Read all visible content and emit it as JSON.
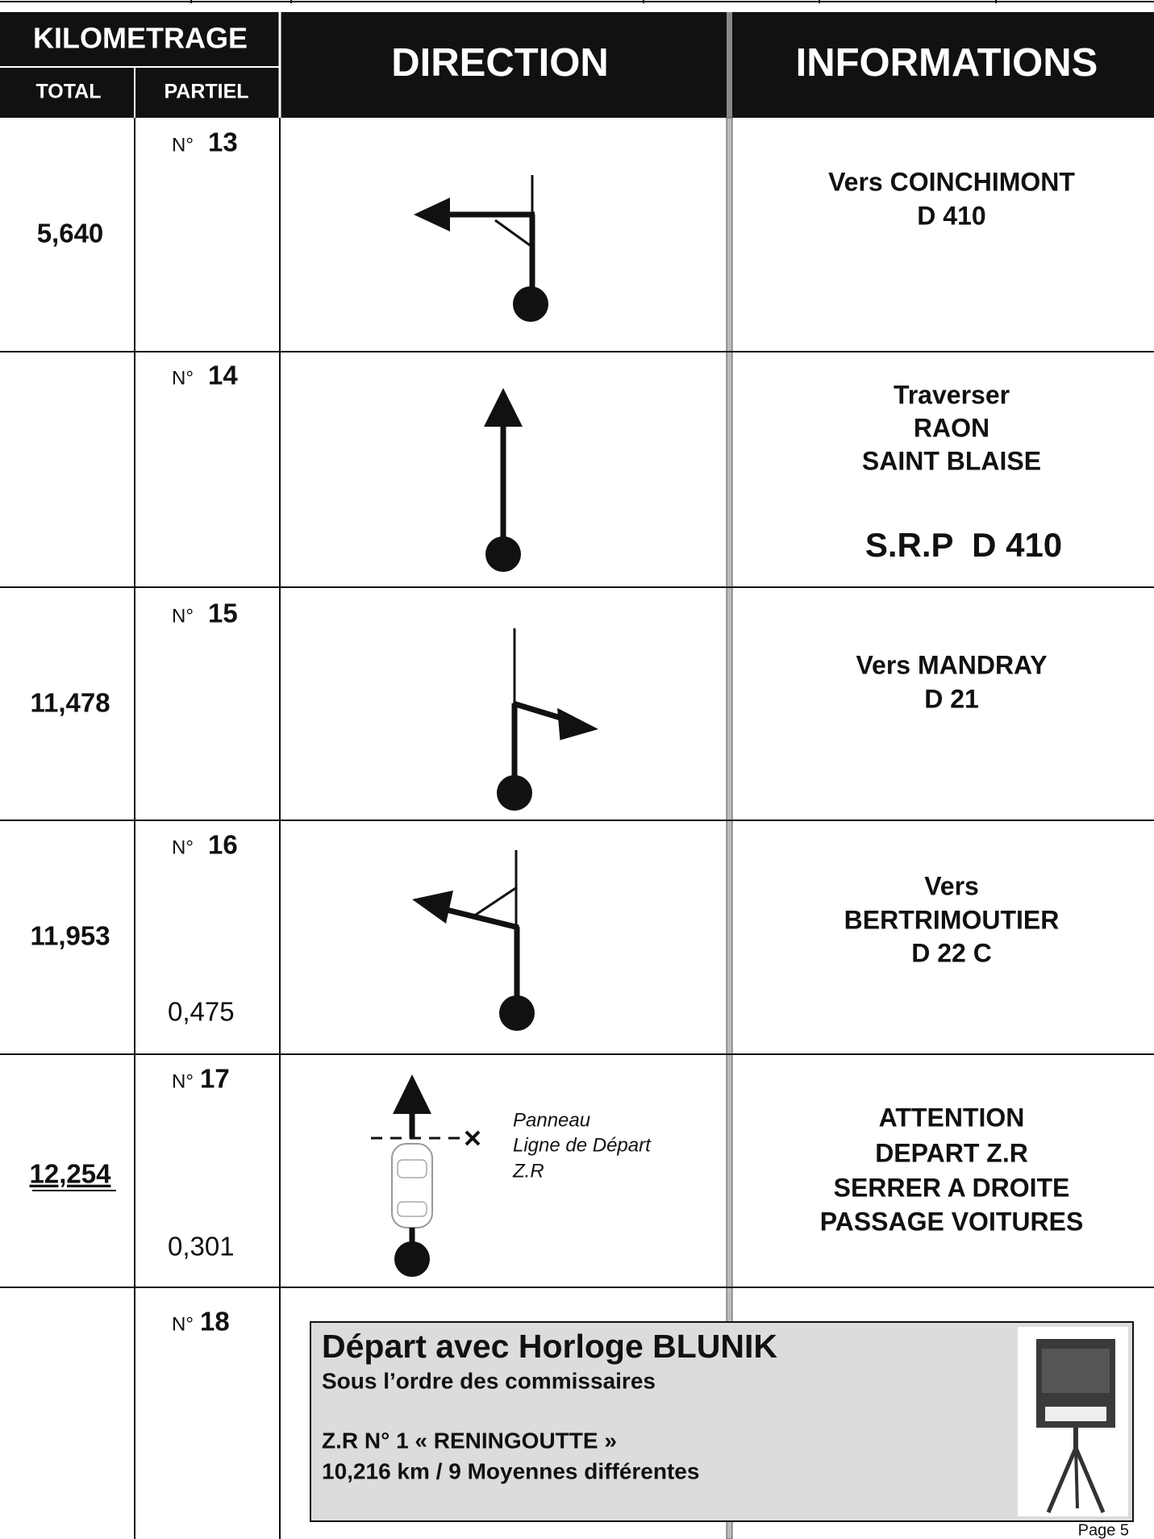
{
  "header": {
    "kilometrage": "KILOMETRAGE",
    "total": "TOTAL",
    "partiel": "PARTIEL",
    "direction": "DIRECTION",
    "informations": "INFORMATIONS"
  },
  "rows": [
    {
      "total": "5,640",
      "number_prefix": "N°",
      "number": "13",
      "information": [
        "Vers COINCHIMONT",
        "D 410"
      ]
    },
    {
      "number_prefix": "N°",
      "number": "14",
      "information": [
        "Traverser",
        "RAON",
        "SAINT BLAISE"
      ],
      "road": "S.R.P  D 410"
    },
    {
      "total": "11,478",
      "number_prefix": "N°",
      "number": "15",
      "information": [
        "Vers MANDRAY",
        "D 21"
      ]
    },
    {
      "total": "11,953",
      "number_prefix": "N°",
      "number": "16",
      "distance": "0,475",
      "information": [
        "Vers",
        "BERTRIMOUTIER",
        "D 22 C"
      ]
    },
    {
      "total": "12,254",
      "number_prefix": "N°",
      "number": "17",
      "distance": "0,301",
      "note": [
        "Panneau",
        "Ligne de Départ",
        "Z.R"
      ],
      "information": [
        "ATTENTION",
        "DEPART Z.R",
        "SERRER A DROITE",
        "PASSAGE VOITURES"
      ]
    },
    {
      "number_prefix": "N°",
      "number": "18",
      "box": {
        "title": "Départ avec Horloge BLUNIK",
        "subtitle": "Sous l’ordre des commissaires",
        "lines": [
          "Z.R N° 1 « RENINGOUTTE »",
          "10,216 km / 9 Moyennes différentes"
        ]
      }
    }
  ],
  "footer": {
    "page": "Page 5"
  }
}
